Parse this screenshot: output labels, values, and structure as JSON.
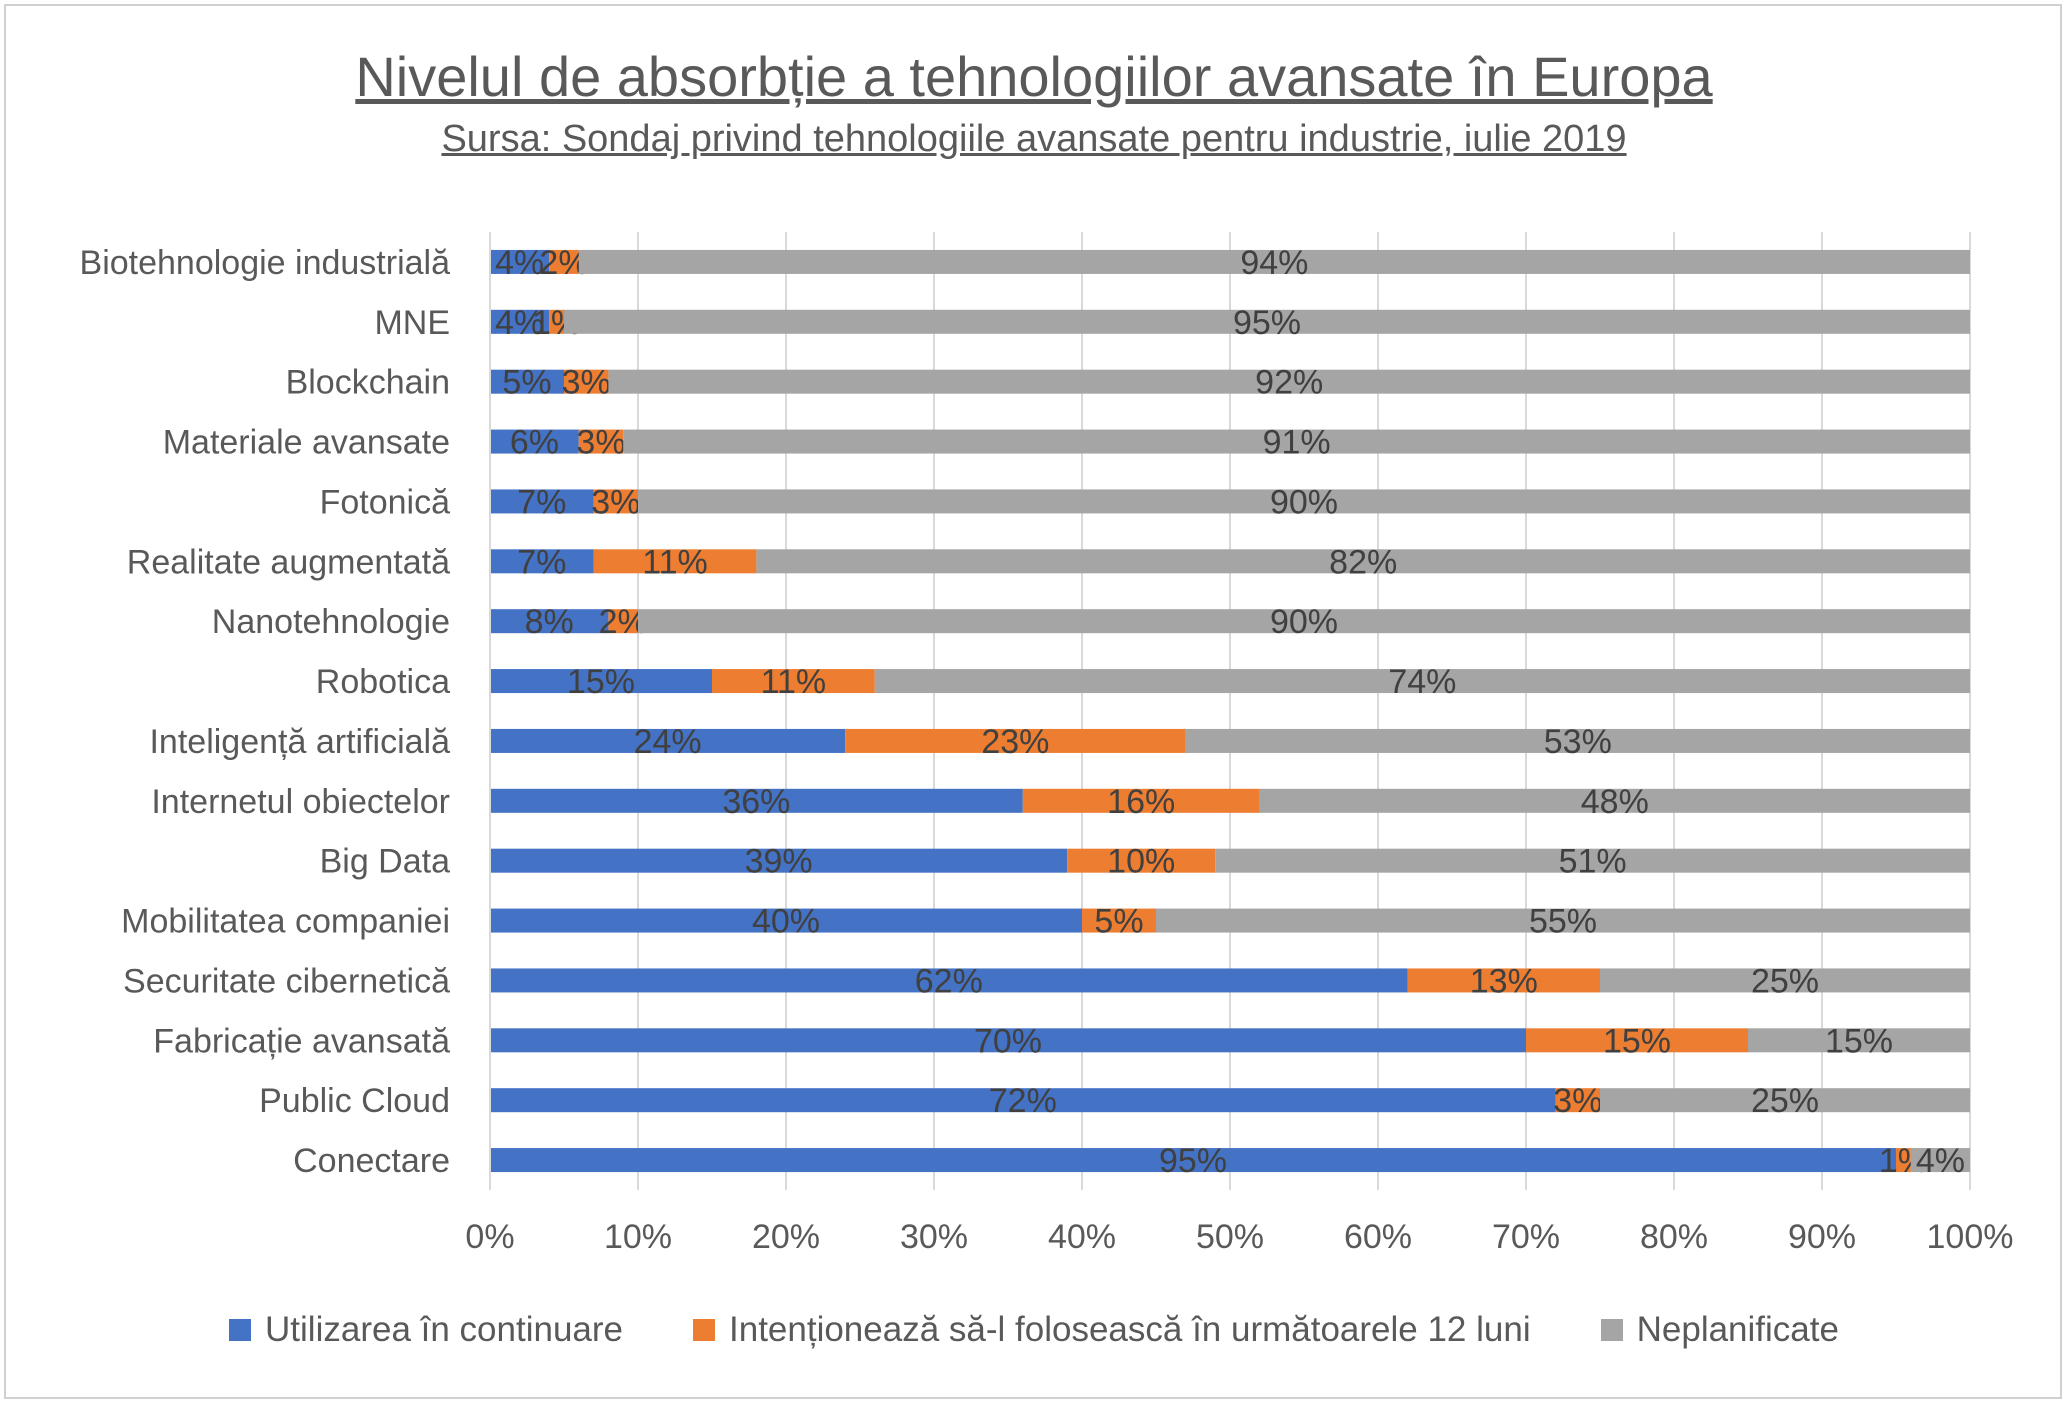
{
  "chart_data": {
    "type": "bar",
    "orientation": "horizontal",
    "stacked": "100%",
    "title": "Nivelul de absorbție a tehnologiilor avansate în Europa",
    "subtitle": "Sursa: Sondaj privind tehnologiile avansate pentru industrie, iulie 2019",
    "categories": [
      "Biotehnologie industrială",
      "MNE",
      "Blockchain",
      "Materiale avansate",
      "Fotonică",
      "Realitate augmentată",
      "Nanotehnologie",
      "Robotica",
      "Inteligență artificială",
      "Internetul obiectelor",
      "Big Data",
      "Mobilitatea companiei",
      "Securitate cibernetică",
      "Fabricație avansată",
      "Public Cloud",
      "Conectare"
    ],
    "series": [
      {
        "name": "Utilizarea în continuare",
        "color": "#4472C4",
        "values": [
          4,
          4,
          5,
          6,
          7,
          7,
          8,
          15,
          24,
          36,
          39,
          40,
          62,
          70,
          72,
          95
        ],
        "labels": [
          "4%",
          "4%",
          "5%",
          "6%",
          "7%",
          "7%",
          "8%",
          "15%",
          "24%",
          "36%",
          "39%",
          "40%",
          "62%",
          "70%",
          "72%",
          "95%"
        ]
      },
      {
        "name": "Intenționează să-l folosească în următoarele 12 luni",
        "color": "#ED7D31",
        "values": [
          2,
          1,
          3,
          3,
          3,
          11,
          2,
          11,
          23,
          16,
          10,
          5,
          13,
          15,
          3,
          1
        ],
        "labels": [
          "2%",
          "1%",
          "3%",
          "3%",
          "3%",
          "11%",
          "2%",
          "11%",
          "23%",
          "16%",
          "10%",
          "5%",
          "13%",
          "15%",
          "3%",
          "1%"
        ]
      },
      {
        "name": "Neplanificate",
        "color": "#A5A5A5",
        "values": [
          94,
          95,
          92,
          91,
          90,
          82,
          90,
          74,
          53,
          48,
          51,
          55,
          25,
          15,
          25,
          4
        ],
        "labels": [
          "94%",
          "95%",
          "92%",
          "91%",
          "90%",
          "82%",
          "90%",
          "74%",
          "53%",
          "48%",
          "51%",
          "55%",
          "25%",
          "15%",
          "25%",
          "4%"
        ]
      }
    ],
    "xlim": [
      0,
      100
    ],
    "xticks": [
      "0%",
      "10%",
      "20%",
      "30%",
      "40%",
      "50%",
      "60%",
      "70%",
      "80%",
      "90%",
      "100%"
    ],
    "grid": true,
    "legend_position": "bottom"
  }
}
